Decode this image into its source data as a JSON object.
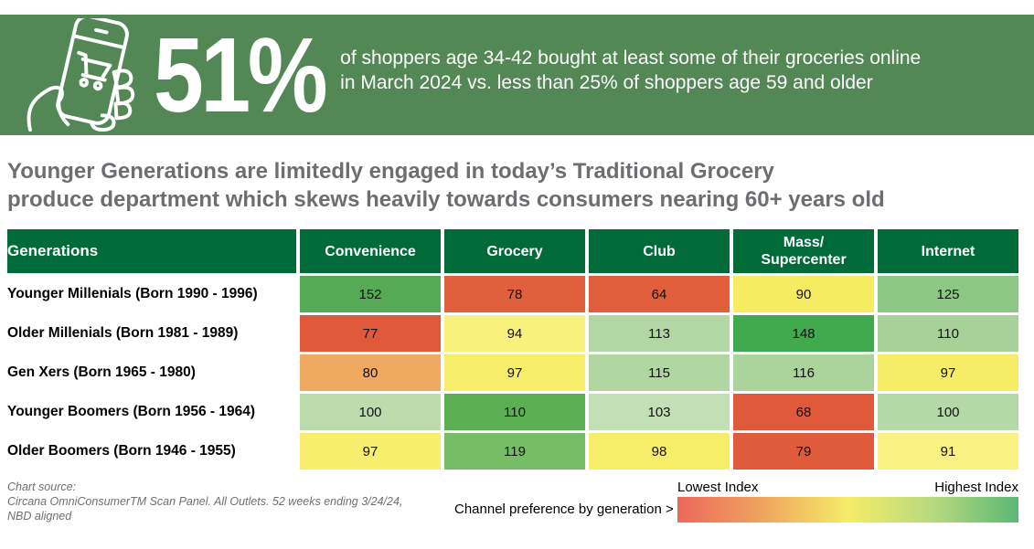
{
  "banner": {
    "bg_color": "#548756",
    "icon": "hand-holding-phone-shopping-cart-icon",
    "stat": "51%",
    "description_line1": "of shoppers age 34-42 bought at least some of their groceries online",
    "description_line2": "in March 2024 vs. less than 25% of shoppers age 59 and older"
  },
  "headline": {
    "color": "#6d6e71",
    "line1": "Younger Generations are limitedly engaged in today’s Traditional Grocery",
    "line2": "produce department which skews heavily towards consumers nearing 60+ years old"
  },
  "table": {
    "header_bg": "#006b39",
    "headers": [
      "Generations",
      "Convenience",
      "Grocery",
      "Club",
      "Mass/\nSupercenter",
      "Internet"
    ],
    "rows": [
      {
        "label": "Younger Millenials (Born 1990 - 1996)",
        "cells": [
          {
            "value": 152,
            "color": "#56aa55"
          },
          {
            "value": 78,
            "color": "#e0603d"
          },
          {
            "value": 64,
            "color": "#e05e3c"
          },
          {
            "value": 90,
            "color": "#f6ec62"
          },
          {
            "value": 125,
            "color": "#8cc883"
          }
        ]
      },
      {
        "label": "Older Millenials (Born 1981 - 1989)",
        "cells": [
          {
            "value": 77,
            "color": "#e0593b"
          },
          {
            "value": 94,
            "color": "#f8f17c"
          },
          {
            "value": 113,
            "color": "#b3d7a4"
          },
          {
            "value": 148,
            "color": "#41a94e"
          },
          {
            "value": 110,
            "color": "#a7d199"
          }
        ]
      },
      {
        "label": "Gen Xers (Born 1965 - 1980)",
        "cells": [
          {
            "value": 80,
            "color": "#f0a961"
          },
          {
            "value": 97,
            "color": "#f7ee6b"
          },
          {
            "value": 115,
            "color": "#b2d6a2"
          },
          {
            "value": 116,
            "color": "#abd49c"
          },
          {
            "value": 97,
            "color": "#f6ed66"
          }
        ]
      },
      {
        "label": "Younger Boomers (Born 1956 - 1964)",
        "cells": [
          {
            "value": 100,
            "color": "#bcdcae"
          },
          {
            "value": 110,
            "color": "#5caf53"
          },
          {
            "value": 103,
            "color": "#c3dfb5"
          },
          {
            "value": 68,
            "color": "#e0593a"
          },
          {
            "value": 100,
            "color": "#b5d8a7"
          }
        ]
      },
      {
        "label": "Older Boomers (Born 1946 - 1955)",
        "cells": [
          {
            "value": 97,
            "color": "#f7ee6d"
          },
          {
            "value": 119,
            "color": "#77bd66"
          },
          {
            "value": 98,
            "color": "#f6ed68"
          },
          {
            "value": 79,
            "color": "#e05b3b"
          },
          {
            "value": 91,
            "color": "#f9f182"
          }
        ]
      }
    ]
  },
  "footer": {
    "source_line1": "Chart source:",
    "source_line2": "Circana OmniConsumerTM Scan Panel. All Outlets. 52 weeks ending 3/24/24,",
    "source_line3": "NBD aligned",
    "legend_label": "Channel preference by generation >",
    "legend_low": "Lowest Index",
    "legend_high": "Highest Index",
    "legend_gradient": [
      "#ec685a",
      "#f0a45f",
      "#f5ec68",
      "#b7d97f",
      "#5bb875"
    ]
  },
  "chart_data": {
    "type": "heatmap",
    "title": "Younger Generations are limitedly engaged in today’s Traditional Grocery produce department which skews heavily towards consumers nearing 60+ years old",
    "callout_stat": "51%",
    "callout_text": "of shoppers age 34-42 bought at least some of their groceries online in March 2024 vs. less than 25% of shoppers age 59 and older",
    "rows": [
      "Younger Millenials (Born 1990 - 1996)",
      "Older Millenials (Born 1981 - 1989)",
      "Gen Xers (Born 1965 - 1980)",
      "Younger Boomers (Born 1956 - 1964)",
      "Older Boomers (Born 1946 - 1955)"
    ],
    "columns": [
      "Convenience",
      "Grocery",
      "Club",
      "Mass/Supercenter",
      "Internet"
    ],
    "values": [
      [
        152,
        78,
        64,
        90,
        125
      ],
      [
        77,
        94,
        113,
        148,
        110
      ],
      [
        80,
        97,
        115,
        116,
        97
      ],
      [
        100,
        110,
        103,
        68,
        100
      ],
      [
        97,
        119,
        98,
        79,
        91
      ]
    ],
    "legend": {
      "position": "bottom-right",
      "low_label": "Lowest Index",
      "high_label": "Highest Index",
      "low_color": "#ec685a",
      "high_color": "#5bb875"
    }
  }
}
